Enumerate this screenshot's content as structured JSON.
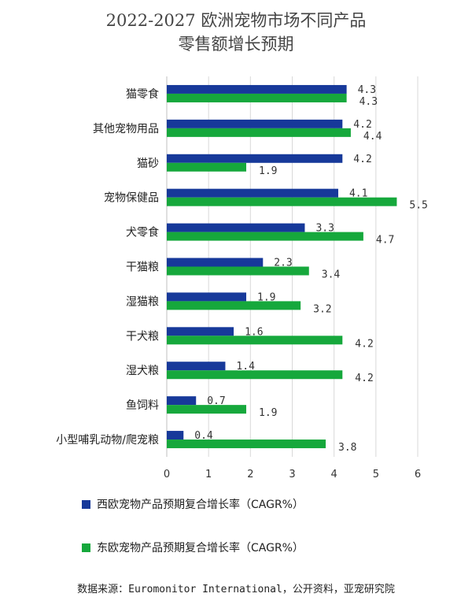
{
  "title_line1": "2022-2027 欧洲宠物市场不同产品",
  "title_line2": "零售额增长预期",
  "source_label": "数据来源：",
  "source_text": "Euromonitor International，公开资料，亚宠研究院",
  "colors": {
    "west": "#17399a",
    "east": "#16a83c",
    "grid": "#d9d9d9"
  },
  "chart_data": {
    "type": "bar",
    "orientation": "horizontal",
    "categories": [
      "猫零食",
      "其他宠物用品",
      "猫砂",
      "宠物保健品",
      "犬零食",
      "干猫粮",
      "湿猫粮",
      "干犬粮",
      "湿犬粮",
      "鱼饲料",
      "小型哺乳动物/爬宠粮"
    ],
    "series": [
      {
        "name": "西欧宠物产品预期复合增长率（CAGR%）",
        "values": [
          4.3,
          4.2,
          4.2,
          4.1,
          3.3,
          2.3,
          1.9,
          1.6,
          1.4,
          0.7,
          0.4
        ],
        "labels": [
          "4.3",
          "4.2",
          "4.2",
          "4.1",
          "3.3",
          "2.3",
          "1.9",
          "1.6",
          "1.4",
          "0.7",
          "0.4"
        ]
      },
      {
        "name": "东欧宠物产品预期复合增长率（CAGR%）",
        "values": [
          4.3,
          4.4,
          1.9,
          5.5,
          4.7,
          3.4,
          3.2,
          4.2,
          4.2,
          1.9,
          3.8
        ],
        "labels": [
          "4.3",
          "4.4",
          "1.9",
          "5.5",
          "4.7",
          "3.4",
          "3.2",
          "4.2",
          "4.2",
          "1.9",
          "3.8"
        ]
      }
    ],
    "xlim": [
      0,
      6
    ],
    "xticks": [
      "0",
      "1",
      "2",
      "3",
      "4",
      "5",
      "6"
    ],
    "grid": true,
    "legend_position": "bottom"
  }
}
